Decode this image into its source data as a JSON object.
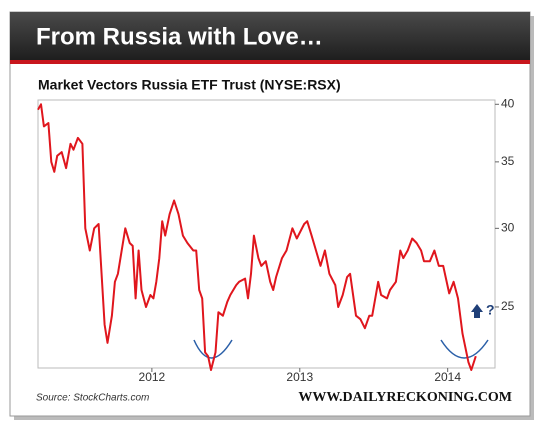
{
  "chart_data": {
    "type": "line",
    "title": "From Russia with Love…",
    "subtitle": "Market Vectors Russia ETF Trust (NYSE:RSX)",
    "source": "Source: StockCharts.com",
    "credit": "WWW.DAILYRECKONING.COM",
    "annotation": "?",
    "log_scale": true,
    "xlim": [
      2011.23,
      2014.32
    ],
    "xticks": [
      2012,
      2013,
      2014
    ],
    "ylim": [
      21.7,
      40.4
    ],
    "yticks": [
      25,
      30,
      35,
      40
    ],
    "series": [
      {
        "color": "#e0161d",
        "x": [
          2011.23,
          2011.25,
          2011.27,
          2011.3,
          2011.32,
          2011.34,
          2011.36,
          2011.39,
          2011.42,
          2011.45,
          2011.47,
          2011.5,
          2011.53,
          2011.55,
          2011.58,
          2011.61,
          2011.64,
          2011.68,
          2011.7,
          2011.73,
          2011.75,
          2011.77,
          2011.82,
          2011.85,
          2011.87,
          2011.89,
          2011.91,
          2011.93,
          2011.96,
          2011.99,
          2012.01,
          2012.03,
          2012.05,
          2012.07,
          2012.09,
          2012.12,
          2012.15,
          2012.18,
          2012.21,
          2012.24,
          2012.28,
          2012.3,
          2012.32,
          2012.34,
          2012.36,
          2012.38,
          2012.4,
          2012.43,
          2012.45,
          2012.48,
          2012.51,
          2012.53,
          2012.57,
          2012.59,
          2012.63,
          2012.65,
          2012.67,
          2012.69,
          2012.72,
          2012.74,
          2012.77,
          2012.8,
          2012.82,
          2012.84,
          2012.88,
          2012.91,
          2012.95,
          2012.98,
          2013.03,
          2013.05,
          2013.08,
          2013.11,
          2013.14,
          2013.17,
          2013.2,
          2013.24,
          2013.26,
          2013.29,
          2013.32,
          2013.34,
          2013.38,
          2013.41,
          2013.44,
          2013.47,
          2013.49,
          2013.53,
          2013.55,
          2013.59,
          2013.61,
          2013.65,
          2013.68,
          2013.7,
          2013.73,
          2013.76,
          2013.79,
          2013.82,
          2013.84,
          2013.88,
          2013.91,
          2013.94,
          2013.97,
          2014.01,
          2014.04,
          2014.07,
          2014.1,
          2014.14,
          2014.16,
          2014.19
        ],
        "values": [
          39.5,
          40,
          38,
          38.3,
          35,
          34.2,
          35.5,
          35.8,
          34.5,
          36.5,
          36,
          37,
          36.5,
          30,
          28.5,
          30,
          30.3,
          24,
          23,
          24.5,
          26.5,
          27,
          30,
          29,
          28.8,
          25.5,
          28.5,
          26,
          25,
          25.7,
          25.5,
          26.5,
          28,
          30.5,
          29.5,
          31,
          32,
          31,
          29.5,
          29,
          28.5,
          28.5,
          26,
          25.5,
          22.5,
          22.3,
          21.6,
          22.5,
          24.7,
          24.5,
          25.3,
          25.7,
          26.3,
          26.5,
          26.7,
          25.5,
          27,
          29.5,
          28,
          27.5,
          27.8,
          26.5,
          26,
          26.8,
          28,
          28.5,
          30,
          29.3,
          30.3,
          30.5,
          29.5,
          28.5,
          27.5,
          28.5,
          27,
          26.3,
          25,
          25.7,
          26.8,
          27,
          24.5,
          24.3,
          23.8,
          24.5,
          24.5,
          26.5,
          25.7,
          25.5,
          26,
          26.5,
          28.5,
          28,
          28.5,
          29.3,
          29,
          28.5,
          27.8,
          27.8,
          28.5,
          27.5,
          27.5,
          25.8,
          26.5,
          25.5,
          23.5,
          22,
          21.6,
          22.3
        ]
      }
    ]
  }
}
